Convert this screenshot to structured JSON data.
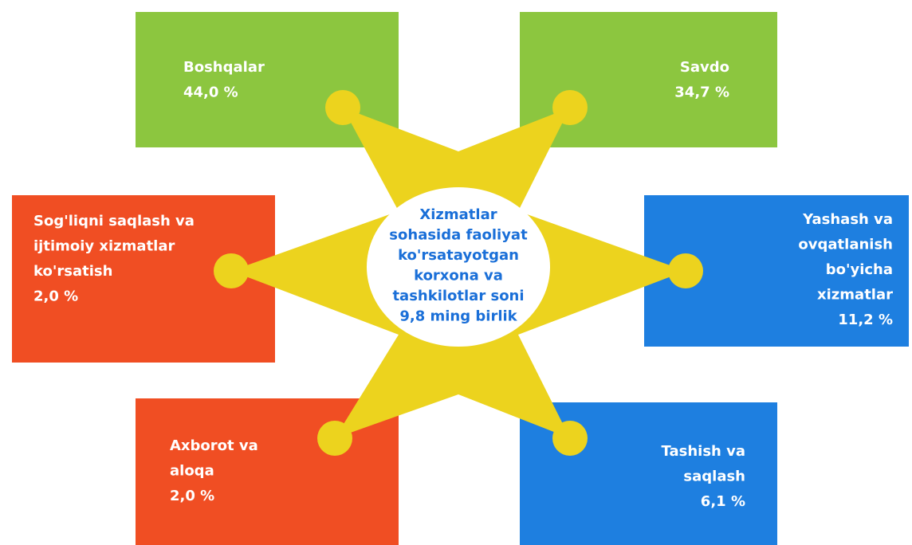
{
  "center": {
    "lines": [
      "Xizmatlar",
      "sohasida faoliyat",
      "ko'rsatayotgan",
      "korxona va",
      "tashkilotlar soni",
      "9,8 ming birlik"
    ]
  },
  "boxes": [
    {
      "lines": [
        "Boshqalar"
      ],
      "value": "44,0 %"
    },
    {
      "lines": [
        "Savdo"
      ],
      "value": "34,7 %"
    },
    {
      "lines": [
        "Sog'liqni saqlash va",
        "ijtimoiy xizmatlar",
        "ko'rsatish"
      ],
      "value": "2,0 %"
    },
    {
      "lines": [
        "Yashash va",
        "ovqatlanish",
        "bo'yicha",
        "xizmatlar"
      ],
      "value": "11,2 %"
    },
    {
      "lines": [
        "Axborot va",
        "aloqa"
      ],
      "value": "2,0 %"
    },
    {
      "lines": [
        "Tashish va",
        "saqlash"
      ],
      "value": "6,1 %"
    }
  ]
}
